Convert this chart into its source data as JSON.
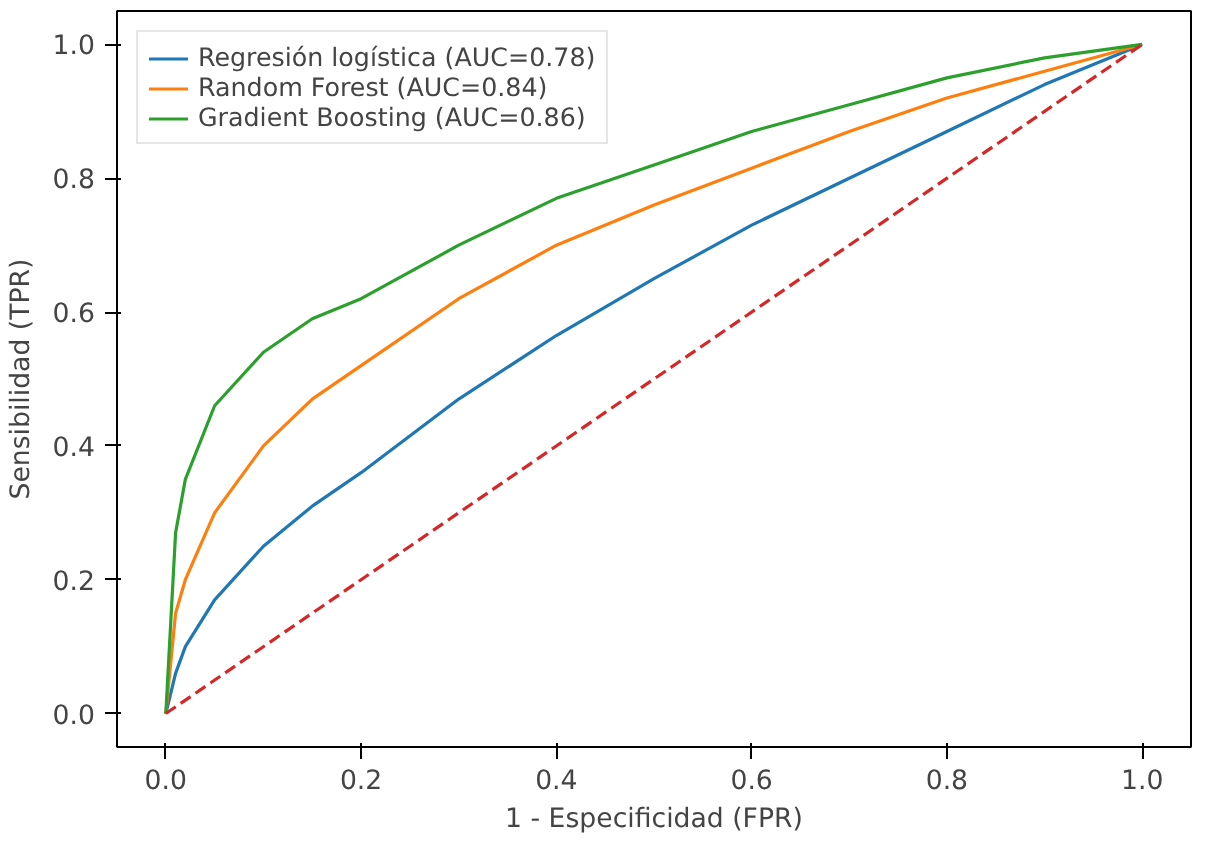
{
  "chart_data": {
    "type": "line",
    "xlabel": "1 - Especificidad (FPR)",
    "ylabel": "Sensibilidad (TPR)",
    "x": [
      0,
      0.01,
      0.02,
      0.05,
      0.1,
      0.15,
      0.2,
      0.3,
      0.4,
      0.5,
      0.6,
      0.7,
      0.8,
      0.9,
      1
    ],
    "series": [
      {
        "name": "Regresión logística (AUC=0.78)",
        "color": "#1f77b4",
        "values": [
          0,
          0.06,
          0.1,
          0.17,
          0.25,
          0.31,
          0.36,
          0.47,
          0.565,
          0.65,
          0.73,
          0.8,
          0.87,
          0.94,
          1
        ]
      },
      {
        "name": "Random Forest (AUC=0.84)",
        "color": "#ff7f0e",
        "values": [
          0,
          0.15,
          0.2,
          0.3,
          0.4,
          0.47,
          0.52,
          0.62,
          0.7,
          0.76,
          0.815,
          0.87,
          0.92,
          0.96,
          1
        ]
      },
      {
        "name": "Gradient Boosting (AUC=0.86)",
        "color": "#2ca02c",
        "values": [
          0,
          0.27,
          0.35,
          0.46,
          0.54,
          0.59,
          0.62,
          0.7,
          0.77,
          0.82,
          0.87,
          0.91,
          0.95,
          0.98,
          1
        ]
      },
      {
        "color": "#d62728",
        "line_style": "dashed",
        "x": [
          0,
          1
        ],
        "values": [
          0,
          1
        ]
      }
    ],
    "xlim": [
      -0.05,
      1.05
    ],
    "ylim": [
      -0.05,
      1.05
    ],
    "xticks": [
      {
        "value": 0,
        "label": "0.0"
      },
      0.2,
      0.4,
      0.6,
      0.8,
      {
        "value": 1,
        "label": "1.0"
      }
    ],
    "yticks": [
      {
        "value": 0,
        "label": "0.0"
      },
      0.2,
      0.4,
      0.6,
      0.8,
      {
        "value": 1,
        "label": "1.0"
      }
    ],
    "legend": "top left",
    "grid": false,
    "line_style": "solid"
  }
}
